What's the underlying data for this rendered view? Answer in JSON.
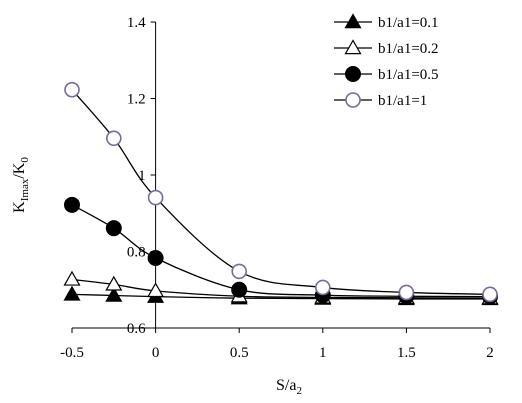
{
  "chart_data": {
    "type": "scatter",
    "xlabel": "S/a2",
    "ylabel": "KImax/K0",
    "xlim": [
      -0.5,
      2
    ],
    "ylim": [
      0.6,
      1.4
    ],
    "x_ticks": [
      "-0.5",
      "0",
      "0.5",
      "1",
      "1.5",
      "2"
    ],
    "y_ticks": [
      "0.6",
      "0.8",
      "1",
      "1.2",
      "1.4"
    ],
    "y_tick_values": [
      0.6,
      0.8,
      1.0,
      1.2,
      1.4
    ],
    "x_tick_values": [
      -0.5,
      0,
      0.5,
      1,
      1.5,
      2
    ],
    "grid": false,
    "legend_position": "top-right",
    "series": [
      {
        "name": "b1/a1=0.1",
        "marker": "triangle-filled",
        "x": [
          -0.5,
          -0.25,
          0,
          0.5,
          1,
          1.5,
          2
        ],
        "y": [
          0.688,
          0.685,
          0.682,
          0.678,
          0.677,
          0.676,
          0.676
        ]
      },
      {
        "name": "b1/a1=0.2",
        "marker": "triangle-open",
        "x": [
          -0.5,
          -0.25,
          0,
          0.5,
          1,
          1.5,
          2
        ],
        "y": [
          0.727,
          0.714,
          0.697,
          0.683,
          0.68,
          0.679,
          0.678
        ]
      },
      {
        "name": "b1/a1=0.5",
        "marker": "circle-filled",
        "x": [
          -0.5,
          -0.25,
          0,
          0.5,
          1,
          1.5,
          2
        ],
        "y": [
          0.922,
          0.861,
          0.783,
          0.7,
          0.686,
          0.683,
          0.682
        ]
      },
      {
        "name": "b1/a1=1",
        "marker": "circle-open",
        "x": [
          -0.5,
          -0.25,
          0,
          0.5,
          1,
          1.5,
          2
        ],
        "y": [
          1.223,
          1.096,
          0.941,
          0.748,
          0.706,
          0.693,
          0.688
        ]
      }
    ]
  },
  "colors": {
    "open_circle_stroke": "#7a6a9a",
    "ink": "#000000"
  }
}
